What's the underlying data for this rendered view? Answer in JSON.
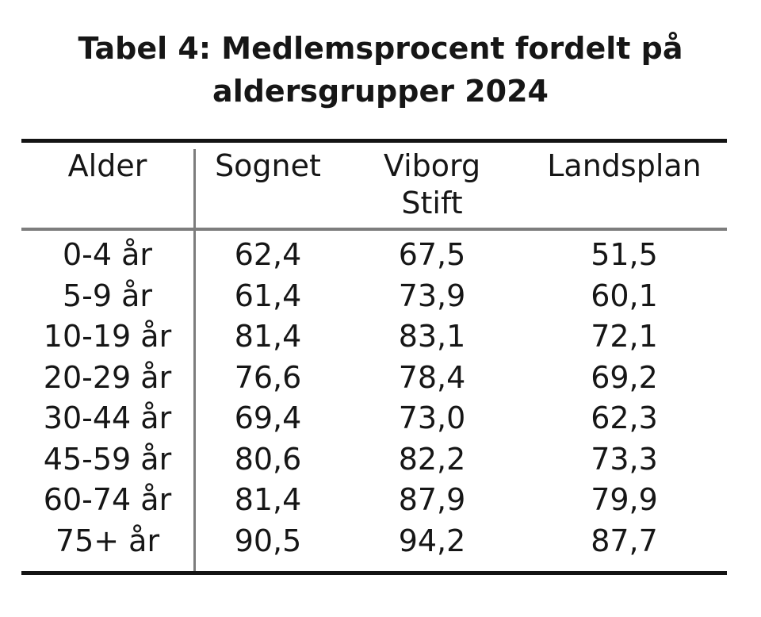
{
  "page_title": {
    "line1": "Tabel 4: Medlemsprocent fordelt på",
    "line2": "aldersgrupper 2024"
  },
  "chart_data": {
    "type": "table",
    "title": "Tabel 4: Medlemsprocent fordelt på aldersgrupper 2024",
    "columns": [
      "Alder",
      "Sognet",
      "Viborg Stift",
      "Landsplan"
    ],
    "rows": [
      [
        "0-4 år",
        "62,4",
        "67,5",
        "51,5"
      ],
      [
        "5-9 år",
        "61,4",
        "73,9",
        "60,1"
      ],
      [
        "10-19 år",
        "81,4",
        "83,1",
        "72,1"
      ],
      [
        "20-29 år",
        "76,6",
        "78,4",
        "69,2"
      ],
      [
        "30-44 år",
        "69,4",
        "73,0",
        "62,3"
      ],
      [
        "45-59 år",
        "80,6",
        "82,2",
        "73,3"
      ],
      [
        "60-74 år",
        "81,4",
        "87,9",
        "79,9"
      ],
      [
        "75+ år",
        "90,5",
        "94,2",
        "87,7"
      ]
    ]
  },
  "colors": {
    "background": "#ffffff",
    "text": "#161616",
    "rule_black": "#141414",
    "rule_gray": "#7d7d7d"
  }
}
